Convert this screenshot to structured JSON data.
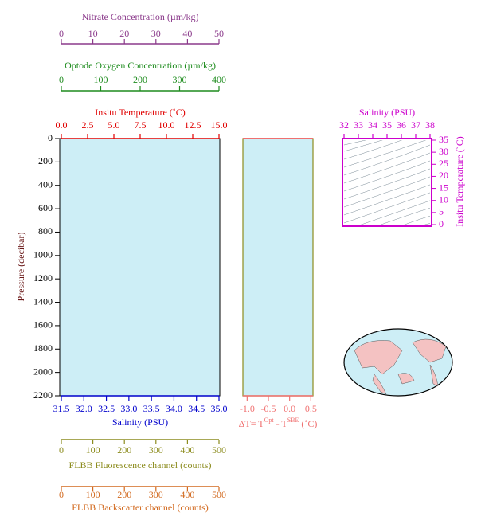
{
  "chart_data": [
    {
      "type": "line",
      "ylabel": "Pressure (decibar)",
      "ylim": [
        0,
        2200
      ],
      "yinverted": true,
      "yticks": [
        0,
        200,
        400,
        600,
        800,
        1000,
        1200,
        1400,
        1600,
        1800,
        2000,
        2200
      ],
      "background": "#cdeef6",
      "axes": [
        {
          "label": "Nitrate Concentration (µm/kg)",
          "lim": [
            0,
            50
          ],
          "ticks": [
            0,
            10,
            20,
            30,
            40,
            50
          ],
          "color": "#8b3a8b"
        },
        {
          "label": "Optode Oxygen Concentration (µm/kg)",
          "lim": [
            0,
            400
          ],
          "ticks": [
            0,
            100,
            200,
            300,
            400
          ],
          "color": "#1e8c1e"
        },
        {
          "label": "Insitu Temperature (˚C)",
          "lim": [
            0,
            15
          ],
          "ticks": [
            {
              "value": 0,
              "label": "0.0"
            },
            2.5,
            {
              "value": 5,
              "label": "5.0"
            },
            7.5,
            {
              "value": 10,
              "label": "10.0"
            },
            12.5,
            {
              "value": 15,
              "label": "15.0"
            }
          ],
          "color": "#e00000"
        },
        {
          "label": "Salinity (PSU)",
          "lim": [
            31.5,
            35
          ],
          "ticks": [
            31.5,
            {
              "value": 32,
              "label": "32.0"
            },
            32.5,
            {
              "value": 33,
              "label": "33.0"
            },
            33.5,
            {
              "value": 34,
              "label": "34.0"
            },
            34.5,
            {
              "value": 35,
              "label": "35.0"
            }
          ],
          "color": "#0000cc"
        },
        {
          "label": "FLBB Fluorescence channel (counts)",
          "lim": [
            0,
            500
          ],
          "ticks": [
            0,
            100,
            200,
            300,
            400,
            500
          ],
          "color": "#8c8c1e"
        },
        {
          "label": "FLBB Backscatter channel (counts)",
          "lim": [
            0,
            500
          ],
          "ticks": [
            0,
            100,
            200,
            300,
            400,
            500
          ],
          "color": "#d2691e"
        }
      ]
    },
    {
      "type": "line",
      "xlabel": [
        "ΔT= T",
        "Opt",
        " - T",
        "SBE",
        " (˚C)"
      ],
      "xlim": [
        -1.1,
        0.55
      ],
      "xticks": [
        {
          "value": -1,
          "label": "-1.0"
        },
        -0.5,
        {
          "value": 0,
          "label": "0.0"
        },
        0.5
      ],
      "color": "#f07070",
      "background": "#cdeef6"
    },
    {
      "type": "scatter",
      "xlabel": "Salinity (PSU)",
      "xlim": [
        32,
        38
      ],
      "xticks": [
        32,
        33,
        34,
        35,
        36,
        37,
        38
      ],
      "ylabel": "Insitu Temperature (˚C)",
      "ylim": [
        0,
        35
      ],
      "yticks": [
        0,
        5,
        10,
        15,
        20,
        25,
        30,
        35
      ],
      "color": "#cc00cc",
      "background": "#cdeef6"
    }
  ]
}
